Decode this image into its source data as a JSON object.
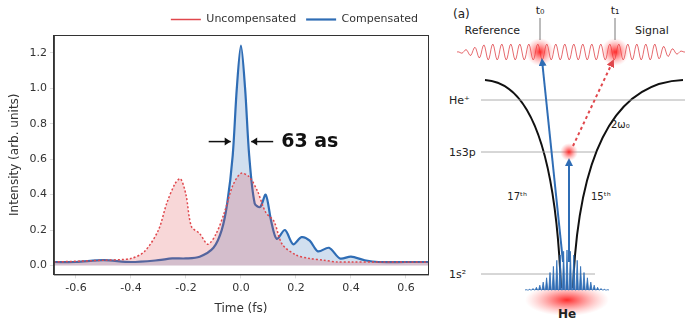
{
  "chart_data": {
    "type": "line",
    "x_label": "Time (fs)",
    "y_label": "Intensity (arb. units)",
    "series": [
      {
        "name": "Uncompensated",
        "color": "#e0474c",
        "line_style": "dotted",
        "x": [
          -0.68,
          -0.5,
          -0.4,
          -0.35,
          -0.3,
          -0.27,
          -0.24,
          -0.22,
          -0.2,
          -0.18,
          -0.15,
          -0.12,
          -0.09,
          -0.06,
          -0.03,
          0,
          0.03,
          0.06,
          0.09,
          0.12,
          0.15,
          0.2,
          0.25,
          0.3,
          0.35,
          0.4,
          0.5,
          0.6,
          0.68
        ],
        "values": [
          0.02,
          0.03,
          0.04,
          0.08,
          0.2,
          0.35,
          0.46,
          0.49,
          0.4,
          0.22,
          0.18,
          0.12,
          0.18,
          0.3,
          0.45,
          0.52,
          0.5,
          0.42,
          0.3,
          0.25,
          0.12,
          0.06,
          0.04,
          0.03,
          0.02,
          0.02,
          0.02,
          0.02,
          0.02
        ]
      },
      {
        "name": "Compensated",
        "color": "#2f6db5",
        "line_style": "solid",
        "x": [
          -0.68,
          -0.6,
          -0.5,
          -0.4,
          -0.3,
          -0.25,
          -0.2,
          -0.15,
          -0.1,
          -0.07,
          -0.05,
          -0.03,
          -0.015,
          0,
          0.015,
          0.03,
          0.05,
          0.07,
          0.09,
          0.11,
          0.13,
          0.16,
          0.19,
          0.22,
          0.25,
          0.28,
          0.32,
          0.36,
          0.4,
          0.45,
          0.5,
          0.6,
          0.68
        ],
        "values": [
          0.02,
          0.02,
          0.03,
          0.02,
          0.03,
          0.04,
          0.04,
          0.05,
          0.1,
          0.2,
          0.35,
          0.62,
          1.0,
          1.24,
          1.0,
          0.62,
          0.35,
          0.33,
          0.4,
          0.25,
          0.15,
          0.2,
          0.12,
          0.16,
          0.14,
          0.08,
          0.1,
          0.04,
          0.05,
          0.03,
          0.02,
          0.02,
          0.02
        ]
      }
    ],
    "xlim": [
      -0.68,
      0.68
    ],
    "xticks": [
      -0.6,
      -0.4,
      -0.2,
      {
        "value": 0,
        "label": "0.0"
      },
      0.2,
      0.4,
      0.6
    ],
    "ylim": [
      -0.05,
      1.3
    ],
    "yticks": [
      {
        "value": 0,
        "label": "0.0"
      },
      0.2,
      0.4,
      0.6,
      0.8,
      {
        "value": 1,
        "label": "1.0"
      },
      1.2
    ],
    "grid": false,
    "legend": "top right",
    "annotations": [
      {
        "text": "63 as"
      }
    ]
  },
  "diagram": {
    "panel_label": "(a)",
    "times": [
      "t₀",
      "t₁"
    ],
    "pulses": [
      "Reference",
      "Signal"
    ],
    "levels": [
      "He⁺",
      "1s3p",
      "1s²"
    ],
    "transitions": [
      "17ᵗʰ",
      "15ᵗʰ",
      "2ω₀"
    ],
    "atom": "He"
  }
}
